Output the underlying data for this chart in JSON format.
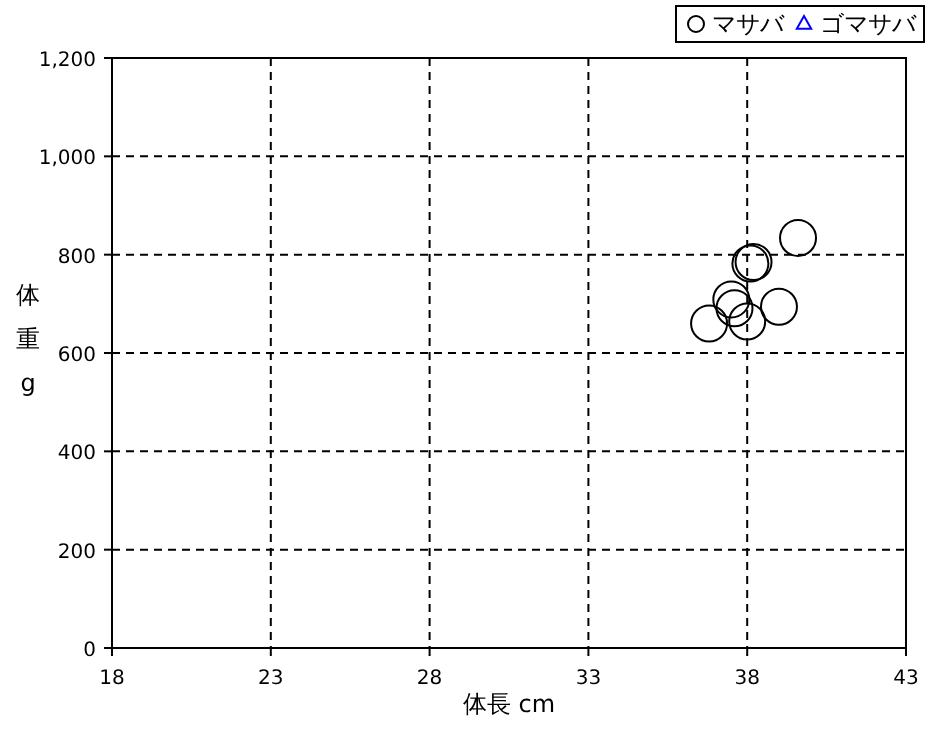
{
  "chart_data": {
    "type": "scatter",
    "xlabel": "体長 cm",
    "ylabel": "体重 g",
    "xlim": [
      18,
      43
    ],
    "xticks": [
      18,
      23,
      28,
      33,
      38,
      43
    ],
    "ylim": [
      0,
      1200
    ],
    "yticks": [
      0,
      200,
      400,
      600,
      800,
      {
        "value": 1000,
        "label": "1,000"
      },
      {
        "value": 1200,
        "label": "1,200"
      }
    ],
    "grid": true,
    "legend": "top right",
    "series": [
      {
        "name": "マサバ",
        "color": "#000000",
        "marker": "circle",
        "x": [
          39.6,
          38.1,
          38.2,
          37.5,
          37.6,
          36.8,
          38.0,
          39.0
        ],
        "values": [
          834,
          782,
          785,
          709,
          691,
          660,
          664,
          694
        ]
      },
      {
        "name": "ゴマサバ",
        "color": "#0000ff",
        "marker": "triangle"
      }
    ]
  }
}
